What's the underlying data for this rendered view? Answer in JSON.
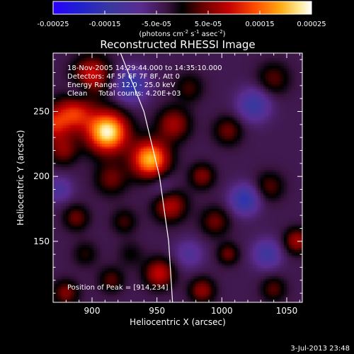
{
  "chart_data": {
    "type": "heatmap",
    "title": "Reconstructed RHESSI Image",
    "xlabel": "Heliocentric X (arcsec)",
    "ylabel": "Heliocentric Y (arcsec)",
    "xlim": [
      870,
      1062
    ],
    "ylim": [
      103,
      295
    ],
    "x_ticks": [
      900,
      950,
      1000,
      1050
    ],
    "x_tick_labels": [
      "900",
      "950",
      "1000",
      "1050"
    ],
    "y_ticks": [
      150,
      200,
      250
    ],
    "y_tick_labels": [
      "150",
      "200",
      "250"
    ],
    "colorbar": {
      "range": [
        -0.00025,
        0.00025
      ],
      "ticks": [
        -0.00025,
        -0.00015,
        -5e-05,
        5e-05,
        0.00015,
        0.00025
      ],
      "tick_labels": [
        "-0.00025",
        "-0.00015",
        "-5.0e-05",
        "5.0e-05",
        "0.00015",
        "0.00025"
      ],
      "unit_prefix": "(photons cm",
      "unit_exp1": "-2",
      "unit_mid1": " s",
      "unit_exp2": "-1",
      "unit_mid2": " asec",
      "unit_exp3": "-2",
      "unit_suffix": ")",
      "colormap": "rainbow-hot"
    },
    "info_lines": [
      "18-Nov-2005 14:29:44.000 to 14:35:10.000",
      "Detectors: 4F 5F 6F 7F 8F, Att 0",
      "Energy Range: 12.0 - 25.0 keV",
      "Clean     Total counts: 4.20E+03"
    ],
    "peak_label": "Position of Peak = [914,234]",
    "peak": [
      914,
      234
    ],
    "peak_value": 0.00025,
    "background_value": -4e-05,
    "blobs": [
      {
        "x": 912,
        "y": 234,
        "amp": 0.00028,
        "s": 11
      },
      {
        "x": 945,
        "y": 213,
        "amp": 0.00024,
        "s": 10
      },
      {
        "x": 887,
        "y": 249,
        "amp": 0.00015,
        "s": 10
      },
      {
        "x": 900,
        "y": 278,
        "amp": 0.00014,
        "s": 10
      },
      {
        "x": 870,
        "y": 240,
        "amp": 0.00013,
        "s": 9
      },
      {
        "x": 878,
        "y": 220,
        "amp": 9e-05,
        "s": 8
      },
      {
        "x": 963,
        "y": 240,
        "amp": 0.00011,
        "s": 9
      },
      {
        "x": 960,
        "y": 178,
        "amp": 0.00013,
        "s": 9
      },
      {
        "x": 915,
        "y": 198,
        "amp": 8e-05,
        "s": 9
      },
      {
        "x": 952,
        "y": 125,
        "amp": 0.00013,
        "s": 8
      },
      {
        "x": 985,
        "y": 200,
        "amp": 9e-05,
        "s": 7
      },
      {
        "x": 995,
        "y": 165,
        "amp": 8e-05,
        "s": 8
      },
      {
        "x": 985,
        "y": 112,
        "amp": 0.0001,
        "s": 7
      },
      {
        "x": 1005,
        "y": 140,
        "amp": 8e-05,
        "s": 6
      },
      {
        "x": 1005,
        "y": 235,
        "amp": 8e-05,
        "s": 8
      },
      {
        "x": 1040,
        "y": 275,
        "amp": 7e-05,
        "s": 9
      },
      {
        "x": 1037,
        "y": 192,
        "amp": 7e-05,
        "s": 8
      },
      {
        "x": 1058,
        "y": 150,
        "amp": 0.00011,
        "s": 7
      },
      {
        "x": 1040,
        "y": 113,
        "amp": 7e-05,
        "s": 7
      },
      {
        "x": 880,
        "y": 110,
        "amp": 9e-05,
        "s": 7
      },
      {
        "x": 915,
        "y": 120,
        "amp": 7e-05,
        "s": 7
      },
      {
        "x": 888,
        "y": 168,
        "amp": 8e-05,
        "s": 7
      },
      {
        "x": 895,
        "y": 140,
        "amp": 5e-05,
        "s": 7
      },
      {
        "x": 925,
        "y": 165,
        "amp": 6e-05,
        "s": 7
      },
      {
        "x": 930,
        "y": 140,
        "amp": 4e-05,
        "s": 7
      },
      {
        "x": 975,
        "y": 268,
        "amp": 6e-05,
        "s": 8
      },
      {
        "x": 930,
        "y": 270,
        "amp": -0.00012,
        "s": 9
      },
      {
        "x": 1025,
        "y": 255,
        "amp": -0.0001,
        "s": 9
      },
      {
        "x": 1018,
        "y": 182,
        "amp": -0.00012,
        "s": 8
      },
      {
        "x": 955,
        "y": 190,
        "amp": -6e-05,
        "s": 8
      },
      {
        "x": 890,
        "y": 265,
        "amp": -6e-05,
        "s": 7
      },
      {
        "x": 1035,
        "y": 140,
        "amp": -9e-05,
        "s": 8
      },
      {
        "x": 975,
        "y": 140,
        "amp": -6e-05,
        "s": 8
      },
      {
        "x": 875,
        "y": 190,
        "amp": -7e-05,
        "s": 7
      }
    ],
    "limb_points": [
      [
        922,
        295
      ],
      [
        940,
        250
      ],
      [
        952,
        200
      ],
      [
        959,
        150
      ],
      [
        962,
        103
      ]
    ],
    "limb_color": "#ffffff"
  },
  "footer": {
    "timestamp": "3-Jul-2013 23:48"
  }
}
